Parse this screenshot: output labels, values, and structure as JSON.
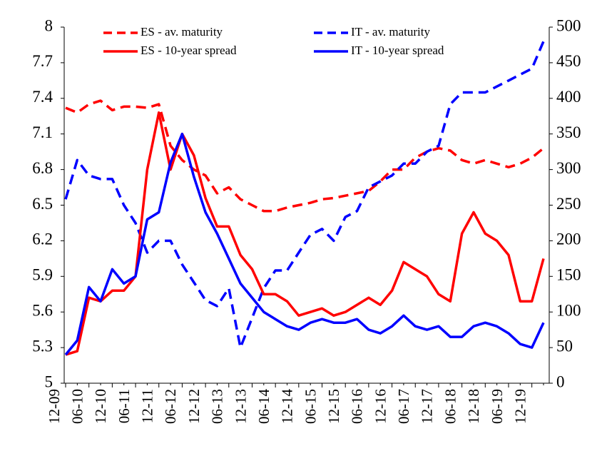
{
  "chart_data": {
    "type": "line",
    "categories": [
      "12-09",
      null,
      "06-10",
      null,
      "12-10",
      null,
      "06-11",
      null,
      "12-11",
      null,
      "06-12",
      null,
      "12-12",
      null,
      "06-13",
      null,
      "12-13",
      null,
      "06-14",
      null,
      "12-14",
      null,
      "06-15",
      null,
      "12-15",
      null,
      "06-16",
      null,
      "12-16",
      null,
      "06-17",
      null,
      "12-17",
      null,
      "06-18",
      null,
      "12-18",
      null,
      "06-19",
      null,
      "12-19",
      null
    ],
    "series": [
      {
        "name": "ES - av. maturity",
        "color": "#ff0000",
        "dashed": true,
        "axis": "y",
        "values": [
          7.32,
          7.28,
          7.35,
          7.38,
          7.3,
          7.33,
          7.33,
          7.32,
          7.35,
          7.0,
          6.88,
          6.8,
          6.75,
          6.6,
          6.65,
          6.55,
          6.5,
          6.45,
          6.45,
          6.48,
          6.5,
          6.52,
          6.55,
          6.56,
          6.58,
          6.6,
          6.62,
          6.7,
          6.8,
          6.8,
          6.9,
          6.95,
          6.98,
          6.96,
          6.88,
          6.85,
          6.88,
          6.85,
          6.82,
          6.85,
          6.9,
          6.98
        ]
      },
      {
        "name": "IT - av. maturity",
        "color": "#0000ff",
        "dashed": true,
        "axis": "y",
        "values": [
          6.55,
          6.88,
          6.75,
          6.72,
          6.72,
          6.5,
          6.35,
          6.1,
          6.2,
          6.2,
          6.0,
          5.85,
          5.7,
          5.65,
          5.8,
          5.3,
          5.55,
          5.8,
          5.95,
          5.95,
          6.1,
          6.25,
          6.3,
          6.2,
          6.4,
          6.45,
          6.65,
          6.7,
          6.75,
          6.85,
          6.85,
          6.95,
          7.0,
          7.35,
          7.45,
          7.45,
          7.45,
          7.5,
          7.55,
          7.6,
          7.65,
          7.88
        ]
      },
      {
        "name": "ES - 10-year spread",
        "color": "#ff0000",
        "dashed": false,
        "axis": "y2",
        "values": [
          40,
          45,
          120,
          115,
          130,
          130,
          150,
          300,
          380,
          300,
          350,
          320,
          260,
          220,
          220,
          180,
          160,
          125,
          125,
          115,
          95,
          100,
          105,
          95,
          100,
          110,
          120,
          110,
          130,
          170,
          160,
          150,
          125,
          115,
          210,
          240,
          210,
          200,
          180,
          115,
          115,
          175
        ]
      },
      {
        "name": "IT - 10-year spread",
        "color": "#0000ff",
        "dashed": false,
        "axis": "y2",
        "values": [
          40,
          60,
          135,
          115,
          160,
          140,
          150,
          230,
          240,
          310,
          350,
          290,
          240,
          210,
          175,
          140,
          120,
          100,
          90,
          80,
          75,
          85,
          90,
          85,
          85,
          90,
          75,
          70,
          80,
          95,
          80,
          75,
          80,
          65,
          65,
          80,
          85,
          80,
          70,
          55,
          50,
          85
        ]
      }
    ],
    "ylim": [
      5,
      8
    ],
    "yticks": [
      5,
      5.3,
      5.6,
      5.9,
      6.2,
      6.5,
      6.8,
      7.1,
      7.4,
      7.7,
      8
    ],
    "y2lim": [
      0,
      500
    ],
    "y2ticks": [
      0,
      50,
      100,
      150,
      200,
      250,
      300,
      350,
      400,
      450,
      500
    ],
    "grid": false
  }
}
